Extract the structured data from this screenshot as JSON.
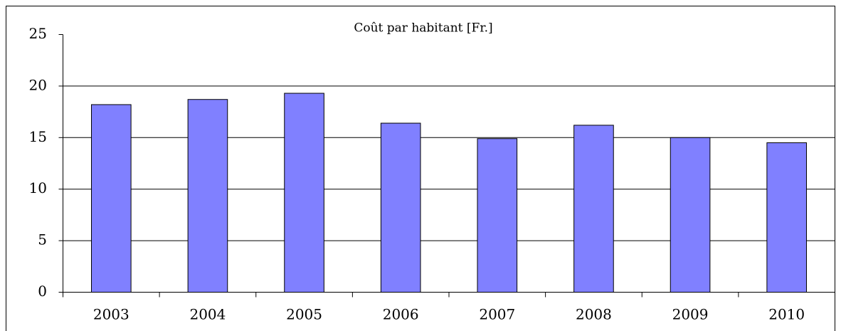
{
  "chart_data": {
    "type": "bar",
    "title": "Coût par habitant [Fr.]",
    "categories": [
      "2003",
      "2004",
      "2005",
      "2006",
      "2007",
      "2008",
      "2009",
      "2010"
    ],
    "values": [
      18.2,
      18.7,
      19.3,
      16.4,
      14.9,
      16.2,
      15.0,
      14.5
    ],
    "color": "#8080ff",
    "ylim": [
      0,
      25
    ],
    "yticks": [
      0,
      5,
      10,
      15,
      20,
      25
    ],
    "grid": true
  }
}
